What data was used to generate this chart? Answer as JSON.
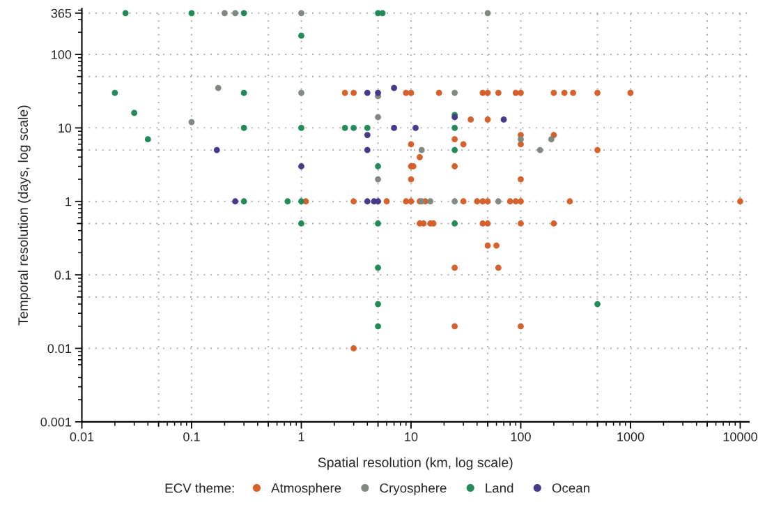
{
  "chart_data": {
    "type": "scatter",
    "xlabel": "Spatial resolution (km, log scale)",
    "ylabel": "Temporal resolution (days, log scale)",
    "legend_title": "ECV theme:",
    "legend": "bottom",
    "grid": true,
    "log": "xy",
    "marker": "circle",
    "xlim": [
      0.01,
      12000
    ],
    "ylim": [
      0.001,
      420
    ],
    "xticks": [
      {
        "value": 0.01,
        "label": "0.01"
      },
      {
        "value": 0.05,
        "label": null
      },
      {
        "value": 0.1,
        "label": "0.1"
      },
      {
        "value": 0.5,
        "label": null
      },
      1,
      {
        "value": 5,
        "label": null
      },
      10,
      {
        "value": 50,
        "label": null
      },
      100,
      {
        "value": 500,
        "label": null
      },
      1000,
      {
        "value": 5000,
        "label": null
      },
      10000
    ],
    "yticks": [
      {
        "value": 0.001,
        "label": "0.001"
      },
      {
        "value": 0.01,
        "label": "0.01"
      },
      {
        "value": 0.05,
        "label": null
      },
      {
        "value": 0.1,
        "label": "0.1"
      },
      {
        "value": 0.5,
        "label": null
      },
      1,
      {
        "value": 5,
        "label": null
      },
      10,
      {
        "value": 50,
        "label": null
      },
      100,
      365
    ],
    "series": [
      {
        "name": "Atmosphere",
        "color": "#d6612c",
        "x": [
          1.1,
          3,
          6,
          9,
          10,
          12,
          13.5,
          30,
          40,
          45,
          50,
          80,
          90,
          100,
          280,
          10000,
          12,
          13,
          15,
          16,
          45,
          50,
          100,
          200,
          50,
          60,
          25,
          62.5,
          25,
          100,
          3,
          2.5,
          3,
          9,
          10,
          18,
          45,
          50,
          62.5,
          90,
          100,
          200,
          250,
          300,
          500,
          1000,
          35,
          50,
          10,
          12,
          25,
          30,
          10,
          10.5,
          10,
          25,
          100,
          100,
          100,
          200,
          500
        ],
        "values": [
          1,
          1,
          1,
          1,
          1,
          1,
          1,
          1,
          1,
          1,
          1,
          1,
          1,
          1,
          1,
          1,
          0.5,
          0.5,
          0.5,
          0.5,
          0.5,
          0.5,
          0.5,
          0.5,
          0.25,
          0.25,
          0.125,
          0.125,
          0.02,
          0.02,
          0.01,
          30,
          30,
          30,
          30,
          30,
          30,
          30,
          30,
          30,
          30,
          30,
          30,
          30,
          30,
          30,
          13,
          13,
          6,
          4,
          7,
          6,
          3,
          3,
          2,
          3,
          8,
          6,
          2,
          8,
          5
        ]
      },
      {
        "name": "Cryosphere",
        "color": "#818a80",
        "x": [
          0.2,
          0.25,
          1,
          50,
          0.175,
          1,
          0.1,
          25,
          5,
          5,
          12.5,
          5,
          12.5,
          15,
          25,
          62.5,
          100,
          190,
          150
        ],
        "values": [
          365,
          365,
          365,
          365,
          35,
          30,
          12,
          30,
          27,
          14,
          5,
          2,
          1,
          1,
          1,
          1,
          7,
          7,
          5
        ]
      },
      {
        "name": "Land",
        "color": "#228b57",
        "x": [
          0.025,
          0.1,
          0.3,
          1,
          5,
          5.5,
          0.02,
          0.3,
          0.03,
          0.04,
          0.3,
          1,
          2.5,
          3,
          4,
          25,
          25,
          25,
          5,
          0.3,
          0.75,
          1,
          1,
          5,
          25,
          5,
          5,
          5,
          500
        ],
        "values": [
          365,
          365,
          365,
          180,
          365,
          365,
          30,
          30,
          16,
          7,
          10,
          10,
          10,
          10,
          10,
          10,
          15,
          5,
          3,
          1,
          1,
          1,
          0.5,
          0.5,
          0.5,
          0.125,
          0.04,
          0.02,
          0.04
        ]
      },
      {
        "name": "Ocean",
        "color": "#463a8c",
        "x": [
          0.17,
          1,
          0.25,
          4,
          5,
          7,
          7,
          11,
          4,
          4,
          25,
          70,
          4,
          4.6,
          5
        ],
        "values": [
          5,
          3,
          1,
          30,
          30,
          35,
          10,
          10,
          8,
          5,
          14,
          13,
          1,
          1,
          1
        ]
      }
    ]
  }
}
